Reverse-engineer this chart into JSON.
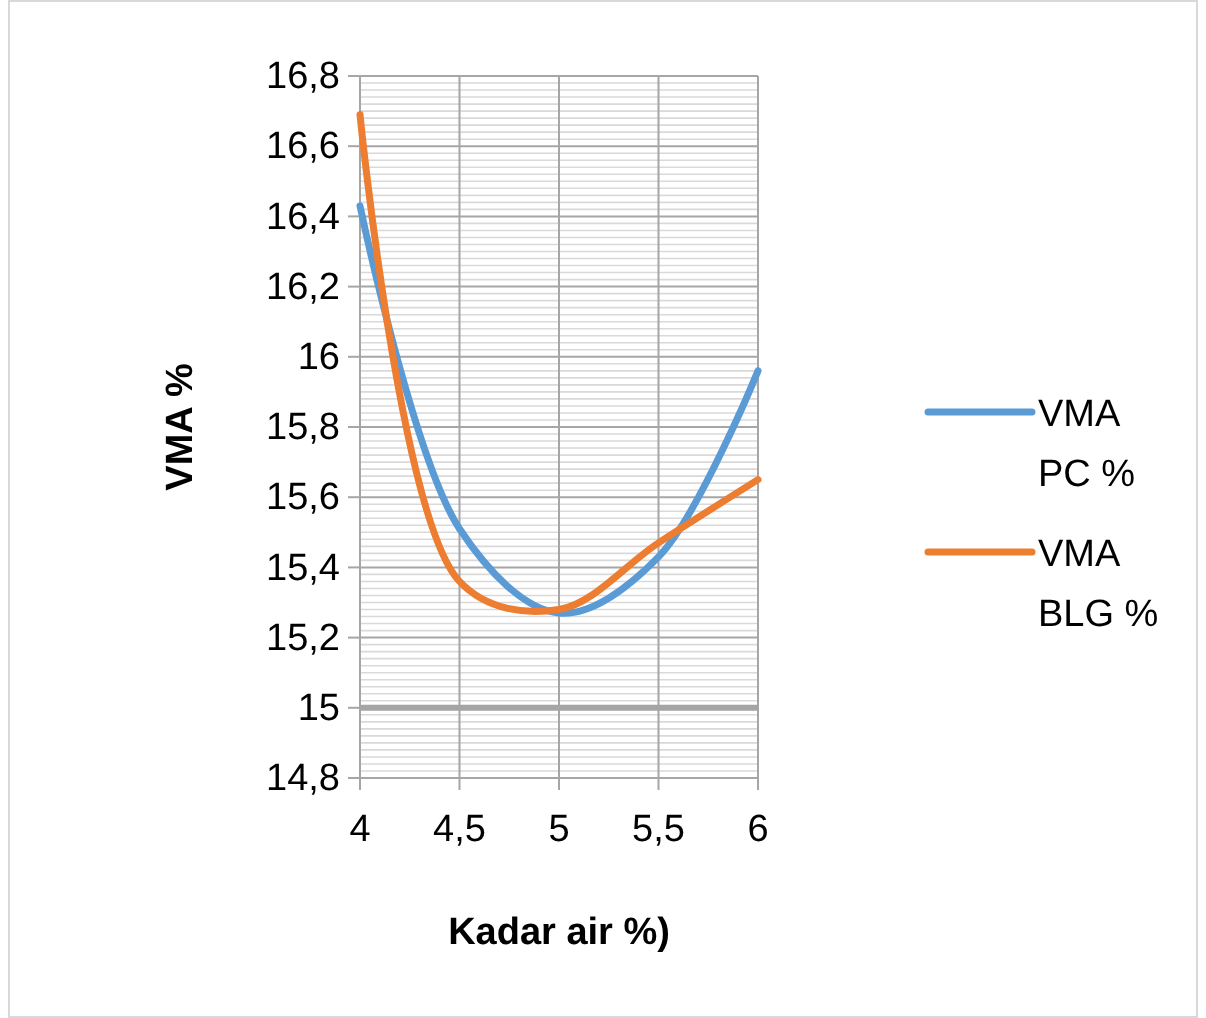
{
  "chart_data": {
    "type": "line",
    "xlabel": "Kadar air %)",
    "ylabel": "VMA %",
    "x": [
      4,
      4.5,
      5,
      5.5,
      6
    ],
    "series": [
      {
        "name": "VMA PC %",
        "color": "#5b9bd5",
        "values": [
          16.43,
          15.51,
          15.27,
          15.43,
          15.96
        ]
      },
      {
        "name": "VMA BLG %",
        "color": "#ed7d31",
        "values": [
          16.69,
          15.36,
          15.28,
          15.47,
          15.65
        ]
      }
    ],
    "xlim": [
      4,
      6
    ],
    "xticks": [
      4,
      {
        "value": 4.5,
        "label": "4,5"
      },
      5,
      {
        "value": 5.5,
        "label": "5,5"
      },
      6
    ],
    "ylim": [
      14.8,
      16.8
    ],
    "yticks": [
      {
        "value": 14.8,
        "label": "14,8"
      },
      15,
      {
        "value": 15.2,
        "label": "15,2"
      },
      {
        "value": 15.4,
        "label": "15,4"
      },
      {
        "value": 15.6,
        "label": "15,6"
      },
      {
        "value": 15.8,
        "label": "15,8"
      },
      16,
      {
        "value": 16.2,
        "label": "16,2"
      },
      {
        "value": 16.4,
        "label": "16,4"
      },
      {
        "value": 16.6,
        "label": "16,6"
      },
      {
        "value": 16.8,
        "label": "16,8"
      }
    ],
    "ref_lines": [
      {
        "axis": "y",
        "value": 15,
        "color": "#a5a5a5"
      }
    ],
    "grid": true,
    "legend": "right",
    "line_style": "solid",
    "marker": "none"
  }
}
